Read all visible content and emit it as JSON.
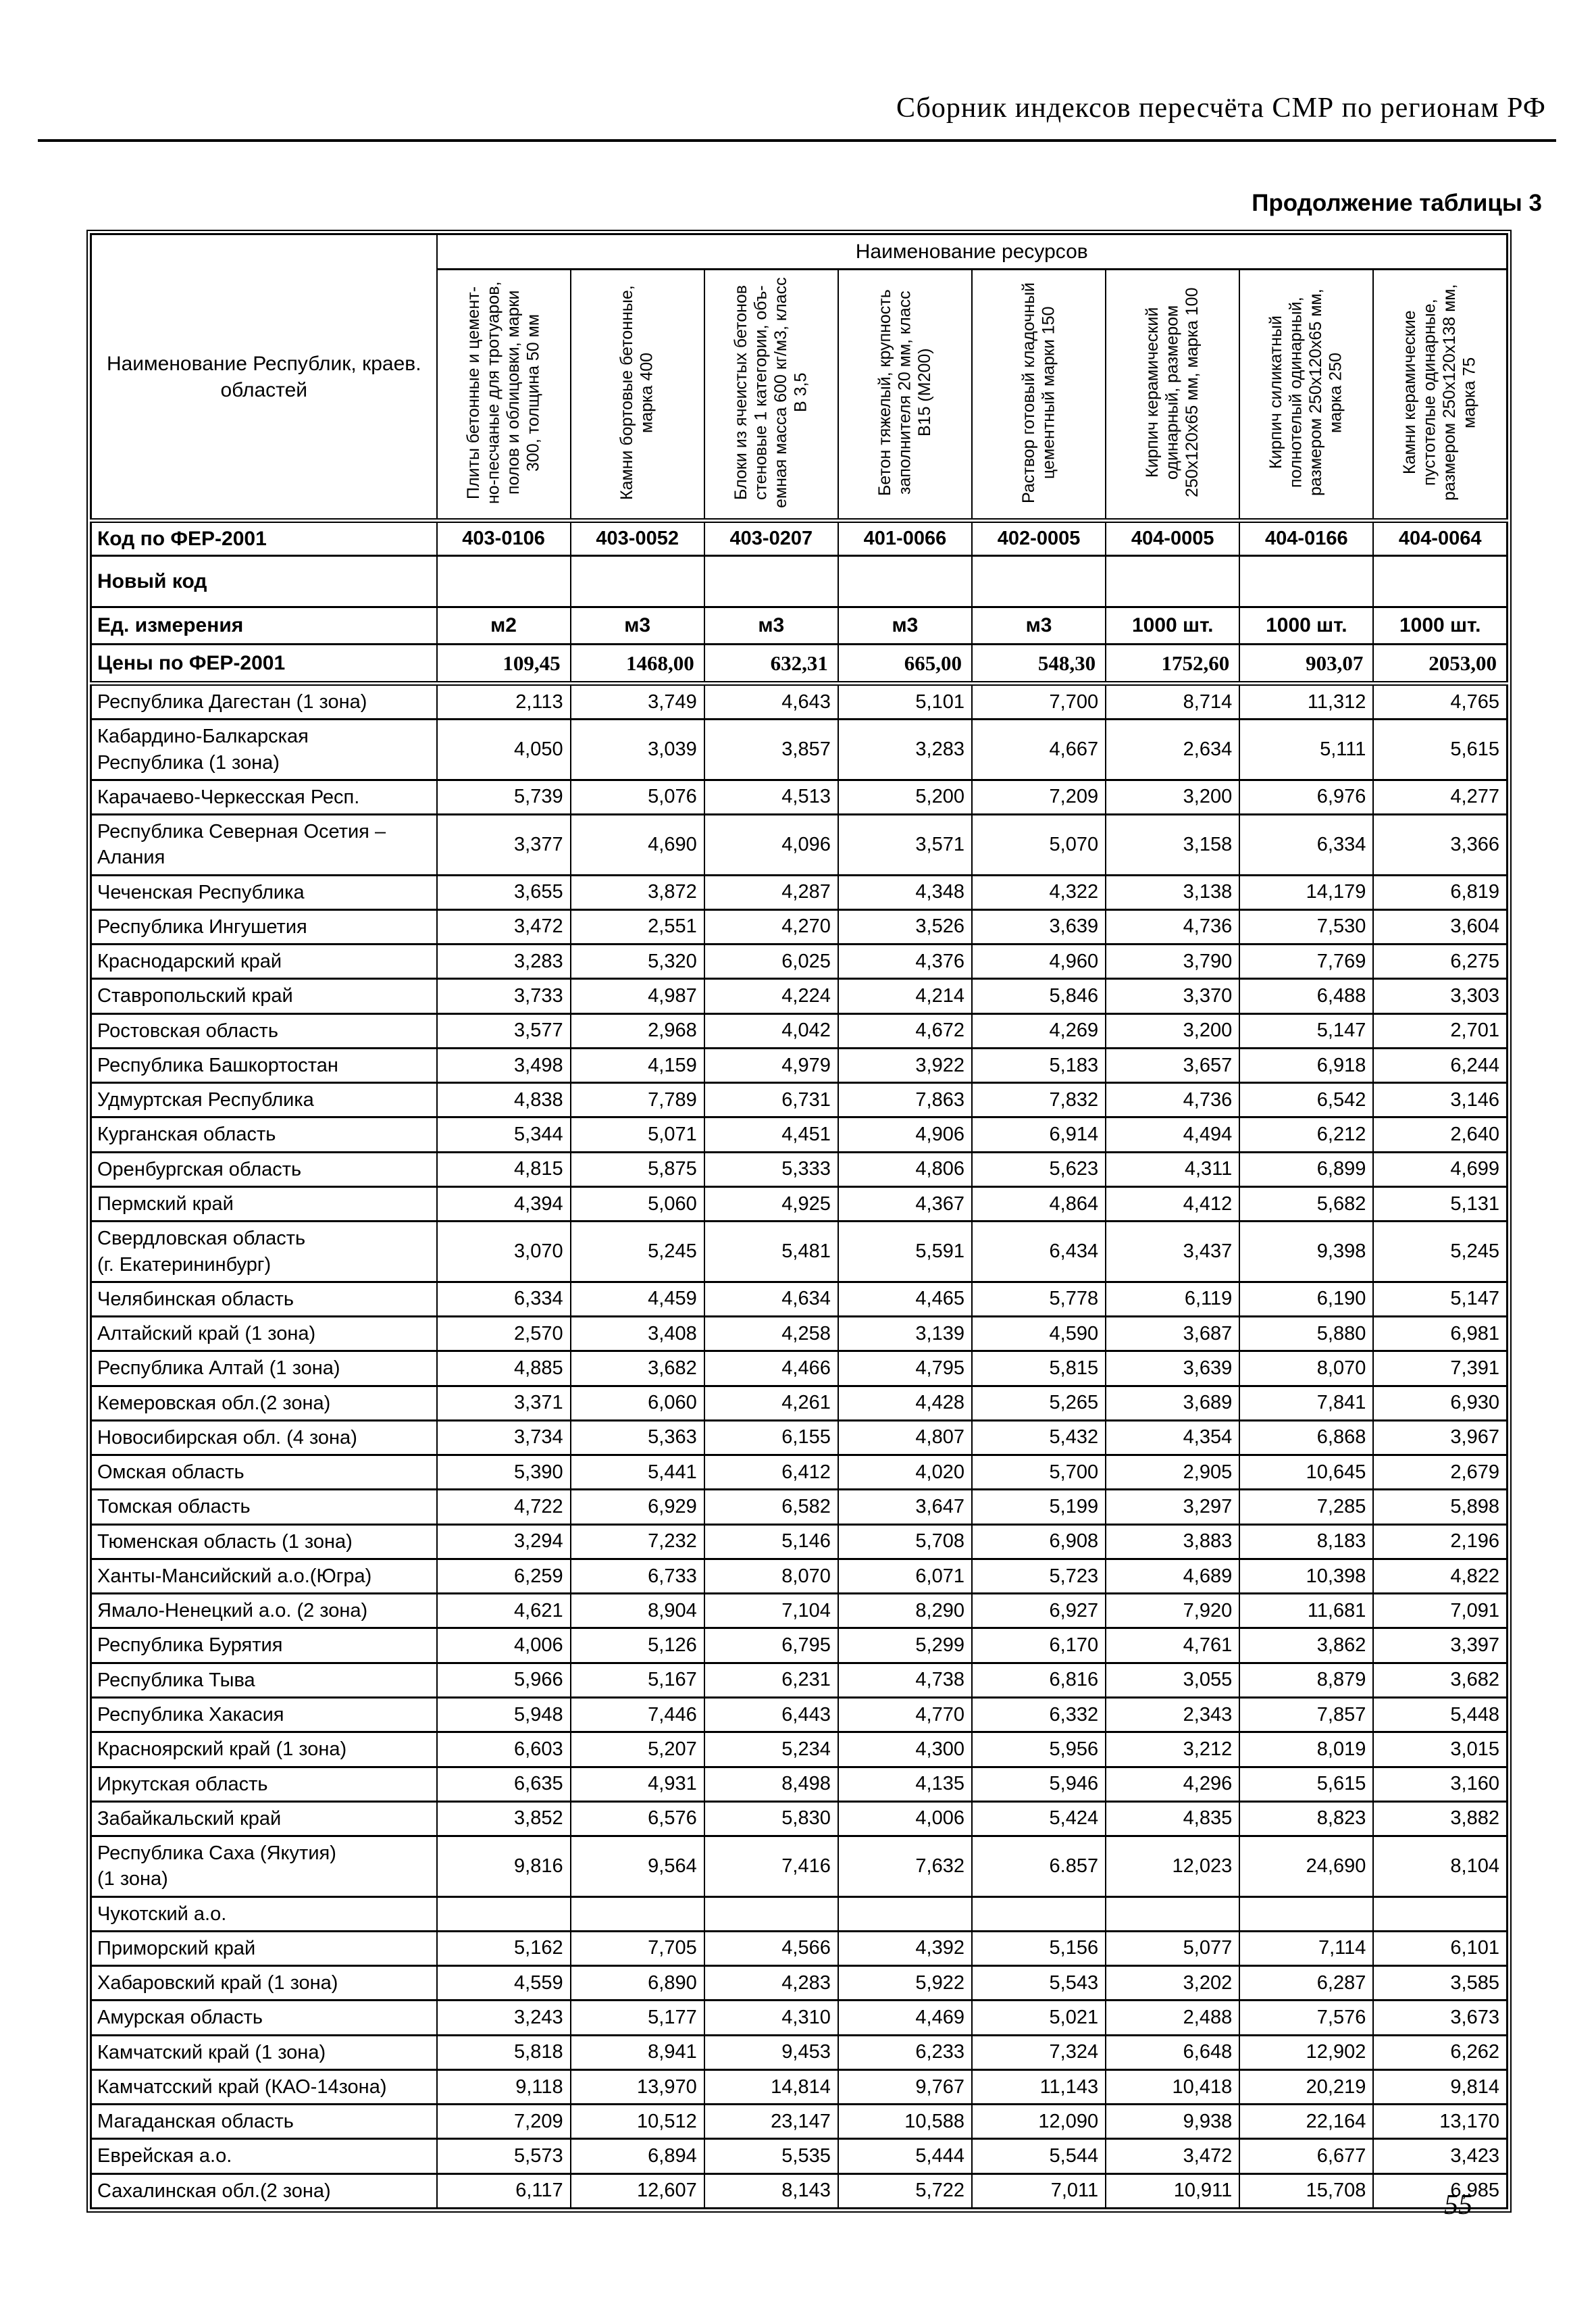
{
  "page": {
    "header_title": "Сборник индексов пересчёта СМР  по регионам РФ",
    "table_caption": "Продолжение таблицы 3",
    "page_number": "55"
  },
  "table": {
    "corner_header": "Наименование Республик, краев.\nобластей",
    "resources_header": "Наименование ресурсов",
    "meta_labels": {
      "code": "Код по ФЕР-2001",
      "new_code": "Новый код",
      "units": "Ед. измерения",
      "prices": "Цены по ФЕР-2001"
    },
    "columns": [
      "Плиты бетонные и цемент-но-песчаные для тротуаров, полов и облицовки, марки 300, толщина 50 мм",
      "Камни бортовые бетонные, марка 400",
      "Блоки из ячеистых бетонов стеновые 1 категории, объ-емная масса 600 кг/м3, класс В 3,5",
      "Бетон тяжелый, крупность заполнителя 20 мм, класс В15 (М200)",
      "Раствор готовый кладочный цементный марки 150",
      "Кирпич керамический одинарный, размером 250х120х65 мм, марка 100",
      "Кирпич силикатный полнотелый одинарный, размером 250х120х65 мм, марка 250",
      "Камни керамические пустотелые одинарные, размером 250х120х138 мм, марка 75"
    ],
    "codes": [
      "403-0106",
      "403-0052",
      "403-0207",
      "401-0066",
      "402-0005",
      "404-0005",
      "404-0166",
      "404-0064"
    ],
    "new_codes": [
      "",
      "",
      "",
      "",
      "",
      "",
      "",
      ""
    ],
    "units": [
      "м2",
      "м3",
      "м3",
      "м3",
      "м3",
      "1000 шт.",
      "1000 шт.",
      "1000 шт."
    ],
    "prices": [
      "109,45",
      "1468,00",
      "632,31",
      "665,00",
      "548,30",
      "1752,60",
      "903,07",
      "2053,00"
    ],
    "regions": [
      {
        "name": "Республика Дагестан (1 зона)",
        "values": [
          "2,113",
          "3,749",
          "4,643",
          "5,101",
          "7,700",
          "8,714",
          "11,312",
          "4,765"
        ]
      },
      {
        "name": "Кабардино-Балкарская\nРеспублика (1 зона)",
        "values": [
          "4,050",
          "3,039",
          "3,857",
          "3,283",
          "4,667",
          "2,634",
          "5,111",
          "5,615"
        ]
      },
      {
        "name": "Карачаево-Черкесская Респ.",
        "values": [
          "5,739",
          "5,076",
          "4,513",
          "5,200",
          "7,209",
          "3,200",
          "6,976",
          "4,277"
        ]
      },
      {
        "name": "Республика Северная Осетия –\nАлания",
        "values": [
          "3,377",
          "4,690",
          "4,096",
          "3,571",
          "5,070",
          "3,158",
          "6,334",
          "3,366"
        ]
      },
      {
        "name": "Чеченская Республика",
        "values": [
          "3,655",
          "3,872",
          "4,287",
          "4,348",
          "4,322",
          "3,138",
          "14,179",
          "6,819"
        ]
      },
      {
        "name": "Республика Ингушетия",
        "values": [
          "3,472",
          "2,551",
          "4,270",
          "3,526",
          "3,639",
          "4,736",
          "7,530",
          "3,604"
        ]
      },
      {
        "name": "Краснодарский край",
        "values": [
          "3,283",
          "5,320",
          "6,025",
          "4,376",
          "4,960",
          "3,790",
          "7,769",
          "6,275"
        ]
      },
      {
        "name": "Ставропольский край",
        "values": [
          "3,733",
          "4,987",
          "4,224",
          "4,214",
          "5,846",
          "3,370",
          "6,488",
          "3,303"
        ]
      },
      {
        "name": "Ростовская область",
        "values": [
          "3,577",
          "2,968",
          "4,042",
          "4,672",
          "4,269",
          "3,200",
          "5,147",
          "2,701"
        ]
      },
      {
        "name": "Республика Башкортостан",
        "values": [
          "3,498",
          "4,159",
          "4,979",
          "3,922",
          "5,183",
          "3,657",
          "6,918",
          "6,244"
        ]
      },
      {
        "name": "Удмуртская Республика",
        "values": [
          "4,838",
          "7,789",
          "6,731",
          "7,863",
          "7,832",
          "4,736",
          "6,542",
          "3,146"
        ]
      },
      {
        "name": "Курганская область",
        "values": [
          "5,344",
          "5,071",
          "4,451",
          "4,906",
          "6,914",
          "4,494",
          "6,212",
          "2,640"
        ]
      },
      {
        "name": "Оренбургская область",
        "values": [
          "4,815",
          "5,875",
          "5,333",
          "4,806",
          "5,623",
          "4,311",
          "6,899",
          "4,699"
        ]
      },
      {
        "name": "Пермский край",
        "values": [
          "4,394",
          "5,060",
          "4,925",
          "4,367",
          "4,864",
          "4,412",
          "5,682",
          "5,131"
        ]
      },
      {
        "name": "Свердловская область\n(г. Екатерининбург)",
        "values": [
          "3,070",
          "5,245",
          "5,481",
          "5,591",
          "6,434",
          "3,437",
          "9,398",
          "5,245"
        ]
      },
      {
        "name": "Челябинская область",
        "values": [
          "6,334",
          "4,459",
          "4,634",
          "4,465",
          "5,778",
          "6,119",
          "6,190",
          "5,147"
        ]
      },
      {
        "name": "Алтайский край (1 зона)",
        "values": [
          "2,570",
          "3,408",
          "4,258",
          "3,139",
          "4,590",
          "3,687",
          "5,880",
          "6,981"
        ]
      },
      {
        "name": "Республика Алтай (1 зона)",
        "values": [
          "4,885",
          "3,682",
          "4,466",
          "4,795",
          "5,815",
          "3,639",
          "8,070",
          "7,391"
        ]
      },
      {
        "name": "Кемеровская обл.(2 зона)",
        "values": [
          "3,371",
          "6,060",
          "4,261",
          "4,428",
          "5,265",
          "3,689",
          "7,841",
          "6,930"
        ]
      },
      {
        "name": "Новосибирская обл. (4 зона)",
        "values": [
          "3,734",
          "5,363",
          "6,155",
          "4,807",
          "5,432",
          "4,354",
          "6,868",
          "3,967"
        ]
      },
      {
        "name": "Омская область",
        "values": [
          "5,390",
          "5,441",
          "6,412",
          "4,020",
          "5,700",
          "2,905",
          "10,645",
          "2,679"
        ]
      },
      {
        "name": "Томская область",
        "values": [
          "4,722",
          "6,929",
          "6,582",
          "3,647",
          "5,199",
          "3,297",
          "7,285",
          "5,898"
        ]
      },
      {
        "name": "Тюменская область (1 зона)",
        "values": [
          "3,294",
          "7,232",
          "5,146",
          "5,708",
          "6,908",
          "3,883",
          "8,183",
          "2,196"
        ]
      },
      {
        "name": "Ханты-Мансийский а.о.(Югра)",
        "values": [
          "6,259",
          "6,733",
          "8,070",
          "6,071",
          "5,723",
          "4,689",
          "10,398",
          "4,822"
        ]
      },
      {
        "name": "Ямало-Ненецкий а.о. (2 зона)",
        "values": [
          "4,621",
          "8,904",
          "7,104",
          "8,290",
          "6,927",
          "7,920",
          "11,681",
          "7,091"
        ]
      },
      {
        "name": "Республика Бурятия",
        "values": [
          "4,006",
          "5,126",
          "6,795",
          "5,299",
          "6,170",
          "4,761",
          "3,862",
          "3,397"
        ]
      },
      {
        "name": "Республика Тыва",
        "values": [
          "5,966",
          "5,167",
          "6,231",
          "4,738",
          "6,816",
          "3,055",
          "8,879",
          "3,682"
        ]
      },
      {
        "name": "Республика Хакасия",
        "values": [
          "5,948",
          "7,446",
          "6,443",
          "4,770",
          "6,332",
          "2,343",
          "7,857",
          "5,448"
        ]
      },
      {
        "name": "Красноярский край (1 зона)",
        "values": [
          "6,603",
          "5,207",
          "5,234",
          "4,300",
          "5,956",
          "3,212",
          "8,019",
          "3,015"
        ]
      },
      {
        "name": "Иркутская область",
        "values": [
          "6,635",
          "4,931",
          "8,498",
          "4,135",
          "5,946",
          "4,296",
          "5,615",
          "3,160"
        ]
      },
      {
        "name": "Забайкальский край",
        "values": [
          "3,852",
          "6,576",
          "5,830",
          "4,006",
          "5,424",
          "4,835",
          "8,823",
          "3,882"
        ]
      },
      {
        "name": "Республика Саха (Якутия)\n(1 зона)",
        "values": [
          "9,816",
          "9,564",
          "7,416",
          "7,632",
          "6.857",
          "12,023",
          "24,690",
          "8,104"
        ]
      },
      {
        "name": "Чукотский а.о.",
        "values": [
          "",
          "",
          "",
          "",
          "",
          "",
          "",
          ""
        ]
      },
      {
        "name": "Приморский край",
        "values": [
          "5,162",
          "7,705",
          "4,566",
          "4,392",
          "5,156",
          "5,077",
          "7,114",
          "6,101"
        ]
      },
      {
        "name": "Хабаровский край (1 зона)",
        "values": [
          "4,559",
          "6,890",
          "4,283",
          "5,922",
          "5,543",
          "3,202",
          "6,287",
          "3,585"
        ]
      },
      {
        "name": "Амурская область",
        "values": [
          "3,243",
          "5,177",
          "4,310",
          "4,469",
          "5,021",
          "2,488",
          "7,576",
          "3,673"
        ]
      },
      {
        "name": "Камчатский край (1 зона)",
        "values": [
          "5,818",
          "8,941",
          "9,453",
          "6,233",
          "7,324",
          "6,648",
          "12,902",
          "6,262"
        ]
      },
      {
        "name": "Камчатсский край (КАО-14зона)",
        "values": [
          "9,118",
          "13,970",
          "14,814",
          "9,767",
          "11,143",
          "10,418",
          "20,219",
          "9,814"
        ]
      },
      {
        "name": "Магаданская область",
        "values": [
          "7,209",
          "10,512",
          "23,147",
          "10,588",
          "12,090",
          "9,938",
          "22,164",
          "13,170"
        ]
      },
      {
        "name": "Еврейская а.о.",
        "values": [
          "5,573",
          "6,894",
          "5,535",
          "5,444",
          "5,544",
          "3,472",
          "6,677",
          "3,423"
        ]
      },
      {
        "name": "Сахалинская обл.(2 зона)",
        "values": [
          "6,117",
          "12,607",
          "8,143",
          "5,722",
          "7,011",
          "10,911",
          "15,708",
          "6,985"
        ]
      }
    ]
  }
}
